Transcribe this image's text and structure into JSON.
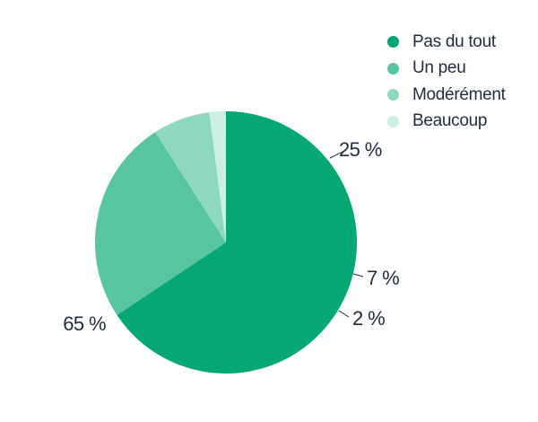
{
  "chart_data": {
    "type": "pie",
    "categories": [
      "Pas du tout",
      "Un peu",
      "Modérément",
      "Beaucoup"
    ],
    "values": [
      65,
      25,
      7,
      2
    ],
    "value_labels": [
      "65 %",
      "25 %",
      "7 %",
      "2 %"
    ],
    "colors": [
      "#05a874",
      "#58c5a2",
      "#8fd8c0",
      "#cdeee2"
    ],
    "legend_position": "top-right",
    "start_angle_deg": 0,
    "direction": "clockwise"
  }
}
